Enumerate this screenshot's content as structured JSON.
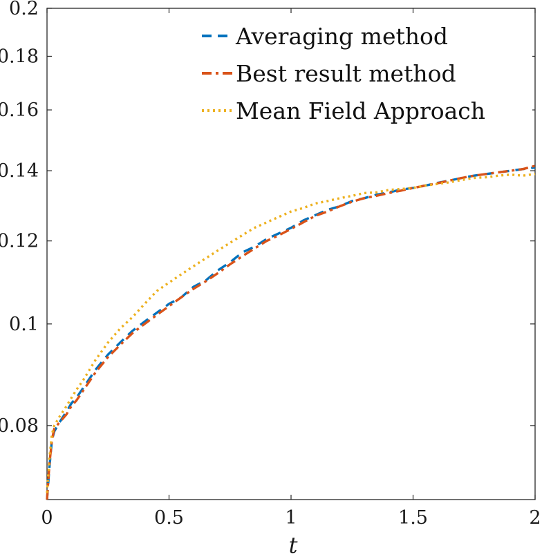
{
  "chart_data": {
    "type": "line",
    "title": "",
    "xlabel": "t",
    "ylabel": "",
    "xlim": [
      0,
      2
    ],
    "ylim": [
      0.068,
      0.2
    ],
    "yscale": "log",
    "grid": false,
    "legend_position": "top-right",
    "x_ticks": [
      0,
      0.5,
      1,
      1.5,
      2
    ],
    "x_tick_labels": [
      "0",
      "0.5",
      "1",
      "1.5",
      "2"
    ],
    "y_ticks": [
      0.08,
      0.1,
      0.12,
      0.14,
      0.16,
      0.18,
      0.2
    ],
    "y_tick_labels": [
      "0.08",
      "0.1",
      "0.12",
      "0.14",
      "0.16",
      "0.18",
      "0.2"
    ],
    "series": [
      {
        "name": "Averaging method",
        "color": "#0072BD",
        "style": "dashed",
        "x": [
          0,
          0.01,
          0.02,
          0.03,
          0.05,
          0.08,
          0.1,
          0.12,
          0.15,
          0.2,
          0.25,
          0.3,
          0.35,
          0.4,
          0.45,
          0.5,
          0.55,
          0.6,
          0.65,
          0.7,
          0.75,
          0.8,
          0.85,
          0.9,
          0.95,
          1.0,
          1.05,
          1.1,
          1.15,
          1.2,
          1.25,
          1.3,
          1.35,
          1.4,
          1.45,
          1.5,
          1.55,
          1.6,
          1.65,
          1.7,
          1.75,
          1.8,
          1.85,
          1.9,
          1.95,
          2.0
        ],
        "y": [
          0.068,
          0.073,
          0.0775,
          0.079,
          0.0805,
          0.0825,
          0.084,
          0.085,
          0.087,
          0.0905,
          0.0935,
          0.096,
          0.0985,
          0.1005,
          0.1025,
          0.1045,
          0.106,
          0.1085,
          0.11,
          0.1125,
          0.1145,
          0.117,
          0.1185,
          0.1205,
          0.122,
          0.1235,
          0.1255,
          0.127,
          0.1285,
          0.1295,
          0.131,
          0.1318,
          0.1328,
          0.1335,
          0.1343,
          0.1348,
          0.1355,
          0.1363,
          0.137,
          0.1378,
          0.1385,
          0.139,
          0.1395,
          0.14,
          0.1405,
          0.141
        ]
      },
      {
        "name": "Best result method",
        "color": "#D95319",
        "style": "dash-dot",
        "x": [
          0,
          0.01,
          0.02,
          0.03,
          0.05,
          0.08,
          0.1,
          0.12,
          0.15,
          0.2,
          0.25,
          0.3,
          0.35,
          0.4,
          0.45,
          0.5,
          0.55,
          0.6,
          0.65,
          0.7,
          0.75,
          0.8,
          0.85,
          0.9,
          0.95,
          1.0,
          1.05,
          1.1,
          1.15,
          1.2,
          1.25,
          1.3,
          1.35,
          1.4,
          1.45,
          1.5,
          1.55,
          1.6,
          1.65,
          1.7,
          1.75,
          1.8,
          1.85,
          1.9,
          1.95,
          2.0
        ],
        "y": [
          0.068,
          0.0735,
          0.0775,
          0.0795,
          0.0805,
          0.082,
          0.0835,
          0.0845,
          0.0865,
          0.09,
          0.093,
          0.0955,
          0.098,
          0.1,
          0.102,
          0.104,
          0.106,
          0.108,
          0.1098,
          0.1118,
          0.114,
          0.116,
          0.118,
          0.12,
          0.1215,
          0.1232,
          0.125,
          0.1268,
          0.128,
          0.1295,
          0.1308,
          0.1318,
          0.1325,
          0.1333,
          0.134,
          0.1348,
          0.1355,
          0.1362,
          0.137,
          0.1378,
          0.1385,
          0.139,
          0.1395,
          0.14,
          0.1405,
          0.1415
        ]
      },
      {
        "name": "Mean Field Approach",
        "color": "#EDB120",
        "style": "dotted",
        "x": [
          0,
          0.01,
          0.02,
          0.03,
          0.05,
          0.08,
          0.1,
          0.12,
          0.15,
          0.2,
          0.25,
          0.3,
          0.35,
          0.4,
          0.45,
          0.5,
          0.55,
          0.6,
          0.65,
          0.7,
          0.75,
          0.8,
          0.85,
          0.9,
          0.95,
          1.0,
          1.05,
          1.1,
          1.15,
          1.2,
          1.25,
          1.3,
          1.35,
          1.4,
          1.45,
          1.5,
          1.55,
          1.6,
          1.65,
          1.7,
          1.75,
          1.8,
          1.85,
          1.9,
          1.95,
          2.0
        ],
        "y": [
          0.069,
          0.0745,
          0.0785,
          0.08,
          0.0815,
          0.0835,
          0.085,
          0.0865,
          0.0885,
          0.0925,
          0.096,
          0.099,
          0.1015,
          0.1045,
          0.1075,
          0.1095,
          0.1115,
          0.1135,
          0.1155,
          0.1175,
          0.1195,
          0.1215,
          0.1235,
          0.125,
          0.1265,
          0.128,
          0.129,
          0.1303,
          0.131,
          0.1318,
          0.1325,
          0.1333,
          0.1335,
          0.1342,
          0.1345,
          0.1348,
          0.1355,
          0.136,
          0.1365,
          0.1372,
          0.1378,
          0.138,
          0.1385,
          0.1388,
          0.1385,
          0.139
        ]
      }
    ]
  }
}
